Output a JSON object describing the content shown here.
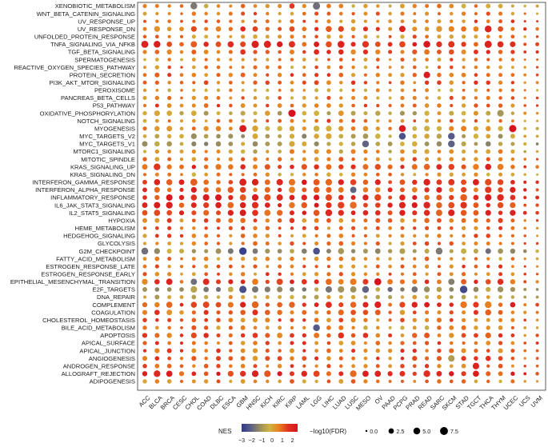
{
  "chart_data": {
    "type": "scatter",
    "subtype": "dot-matrix",
    "title": "",
    "xlabel": "",
    "ylabel": "",
    "grid": false,
    "x_categories": [
      "ACC",
      "BLCA",
      "BRCA",
      "CESC",
      "CHOL",
      "COAD",
      "DLBC",
      "ESCA",
      "GBM",
      "HNSC",
      "KICH",
      "KIRC",
      "KIRP",
      "LAML",
      "LGG",
      "LIHC",
      "LUAD",
      "LUSC",
      "MESO",
      "OV",
      "PAAD",
      "PCPG",
      "PRAD",
      "READ",
      "SARC",
      "SKCM",
      "STAD",
      "TGCT",
      "THCA",
      "THYM",
      "UCEC",
      "UCS",
      "UVM"
    ],
    "y_categories": [
      "XENOBIOTIC_METABOLISM",
      "WNT_BETA_CATENIN_SIGNALING",
      "UV_RESPONSE_UP",
      "UV_RESPONSE_DN",
      "UNFOLDED_PROTEIN_RESPONSE",
      "TNFA_SIGNALING_VIA_NFKB",
      "TGF_BETA_SIGNALING",
      "SPERMATOGENESIS",
      "REACTIVE_OXYGEN_SPECIES_PATHWAY",
      "PROTEIN_SECRETION",
      "PI3K_AKT_MTOR_SIGNALING",
      "PEROXISOME",
      "PANCREAS_BETA_CELLS",
      "P53_PATHWAY",
      "OXIDATIVE_PHOSPHORYLATION",
      "NOTCH_SIGNALING",
      "MYOGENESIS",
      "MYC_TARGETS_V2",
      "MYC_TARGETS_V1",
      "MTORC1_SIGNALING",
      "MITOTIC_SPINDLE",
      "KRAS_SIGNALING_UP",
      "KRAS_SIGNALING_DN",
      "INTERFERON_GAMMA_RESPONSE",
      "INTERFERON_ALPHA_RESPONSE",
      "INFLAMMATORY_RESPONSE",
      "IL6_JAK_STAT3_SIGNALING",
      "IL2_STAT5_SIGNALING",
      "HYPOXIA",
      "HEME_METABOLISM",
      "HEDGEHOG_SIGNALING",
      "GLYCOLYSIS",
      "G2M_CHECKPOINT",
      "FATTY_ACID_METABOLISM",
      "ESTROGEN_RESPONSE_LATE",
      "ESTROGEN_RESPONSE_EARLY",
      "EPITHELIAL_MESENCHYMAL_TRANSITION",
      "E2F_TARGETS",
      "DNA_REPAIR",
      "COMPLEMENT",
      "COAGULATION",
      "CHOLESTEROL_HOMEOSTASIS",
      "BILE_ACID_METABOLISM",
      "APOPTOSIS",
      "APICAL_SURFACE",
      "APICAL_JUNCTION",
      "ANGIOGENESIS",
      "ANDROGEN_RESPONSE",
      "ALLOGRAFT_REJECTION",
      "ADIPOGENESIS"
    ],
    "color_scale": {
      "name": "NES",
      "ticks": [
        "−3",
        "−2",
        "−1",
        "0",
        "1",
        "2"
      ],
      "range": [
        -3,
        2.5
      ],
      "stops": [
        "#2e3a8c",
        "#5b5f86",
        "#9b8f5e",
        "#d0b341",
        "#e8801f",
        "#e0301f",
        "#d7141e"
      ]
    },
    "size_scale": {
      "name": "−log10(FDR)",
      "ticks": [
        "0.0",
        "2.5",
        "5.0",
        "7.5"
      ],
      "range": [
        0,
        7.5
      ]
    },
    "highlights": {
      "UV_RESPONSE_DN": {
        "PCPG": [
          2.0,
          4.0
        ],
        "THCA": [
          2.0,
          5.0
        ]
      },
      "TNFA_SIGNALING_VIA_NFKB": {
        "ACC": [
          2.0,
          5.5
        ],
        "BLCA": [
          2.2,
          5.0
        ],
        "HNSC": [
          2.1,
          6.0
        ],
        "KICH": [
          2.0,
          5.8
        ],
        "LUAD": [
          2.0,
          5.2
        ],
        "THCA": [
          2.0,
          5.8
        ]
      },
      "XENOBIOTIC_METABOLISM": {
        "CHOL": [
          -1.6,
          5.0
        ],
        "LGG": [
          -1.8,
          6.0
        ],
        "KIRP": [
          1.5,
          2.5
        ]
      },
      "PROTEIN_SECRETION": {
        "READ": [
          2.3,
          4.5
        ]
      },
      "OXIDATIVE_PHOSPHORYLATION": {
        "KIRP": [
          2.5,
          6.0
        ],
        "THYM": [
          -1.0,
          4.5
        ]
      },
      "MYOGENESIS": {
        "GBM": [
          2.3,
          5.5
        ],
        "PCPG": [
          2.3,
          5.0
        ],
        "UCEC": [
          2.5,
          6.0
        ]
      },
      "MYC_TARGETS_V2": {
        "PCPG": [
          -2.4,
          5.0
        ],
        "SKCM": [
          -2.2,
          5.0
        ]
      },
      "MYC_TARGETS_V1": {
        "MESO": [
          -2.0,
          5.0
        ],
        "SKCM": [
          -2.0,
          5.0
        ]
      },
      "G2M_CHECKPOINT": {
        "ACC": [
          -1.8,
          5.0
        ],
        "GBM": [
          -2.8,
          6.5
        ],
        "LGG": [
          -2.4,
          5.0
        ],
        "SARC": [
          -1.6,
          5.0
        ]
      },
      "E2F_TARGETS": {
        "GBM": [
          -2.5,
          6.0
        ],
        "MESO": [
          -2.0,
          5.0
        ],
        "STAD": [
          -2.6,
          6.5
        ]
      },
      "EPITHELIAL_MESENCHYMAL_TRANSITION": {
        "CHOL": [
          -1.8,
          4.0
        ],
        "OV": [
          2.5,
          5.5
        ],
        "SKCM": [
          -1.5,
          4.0
        ]
      },
      "INTERFERON_ALPHA_RESPONSE": {
        "LUSC": [
          -2.0,
          4.0
        ]
      },
      "BILE_ACID_METABOLISM": {
        "LGG": [
          -2.2,
          5.0
        ]
      },
      "ANGIOGENESIS": {
        "SKCM": [
          -0.8,
          4.5
        ]
      },
      "ANDROGEN_RESPONSE": {
        "TGCT": [
          2.0,
          4.5
        ]
      }
    }
  }
}
